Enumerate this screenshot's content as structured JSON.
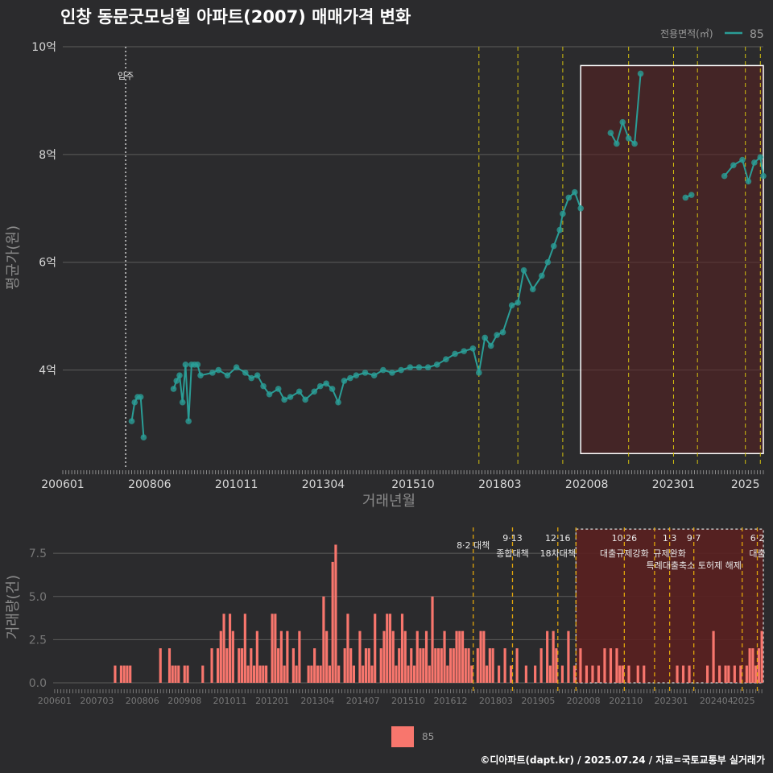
{
  "title": "인창 동문굿모닝힐 아파트(2007) 매매가격 변화",
  "legend": {
    "title": "전용면적(㎡)",
    "series": "85",
    "bottom_series": "85"
  },
  "colors": {
    "line": "#2a9d96",
    "point": "#2a9d96",
    "bar": "#f8766d",
    "policy": "#d4c10f",
    "highlight_fill": "#5a2020",
    "vline_white": "#d0d0d0"
  },
  "credit": "©디아파트(dapt.kr) / 2025.07.24 / 자료=국토교통부 실거래가",
  "chart_data": [
    {
      "type": "line",
      "name": "price",
      "xlabel": "거래년월",
      "ylabel": "평균가(원)",
      "x_range": [
        "2006-01",
        "2025-07"
      ],
      "ylim": [
        2.2,
        10.0
      ],
      "y_unit": "억",
      "yticks": [
        {
          "v": 4,
          "label": "4억"
        },
        {
          "v": 6,
          "label": "6억"
        },
        {
          "v": 8,
          "label": "8억"
        },
        {
          "v": 10,
          "label": "10억"
        }
      ],
      "xticks": [
        "200601",
        "200806",
        "201011",
        "201304",
        "201510",
        "201803",
        "202008",
        "202301",
        "2025"
      ],
      "event_line": {
        "x": "2007-10",
        "label": "입주"
      },
      "policy_lines": [
        "2017-08",
        "2018-09",
        "2019-12",
        "2021-10",
        "2023-01",
        "2023-09",
        "2025-01",
        "2025-06"
      ],
      "highlight": {
        "from": "2020-06",
        "to": "2025-07",
        "ymin": 2.45,
        "ymax": 9.65
      },
      "series": [
        {
          "name": "85",
          "x": [
            "2007-12",
            "2008-01",
            "2008-02",
            "2008-03",
            "2008-04",
            "2009-02",
            "2009-03",
            "2009-04",
            "2009-05",
            "2009-06",
            "2009-07",
            "2009-08",
            "2009-09",
            "2009-10",
            "2009-11",
            "2010-03",
            "2010-05",
            "2010-08",
            "2010-11",
            "2011-02",
            "2011-04",
            "2011-06",
            "2011-08",
            "2011-10",
            "2012-01",
            "2012-03",
            "2012-05",
            "2012-08",
            "2012-10",
            "2013-01",
            "2013-03",
            "2013-05",
            "2013-07",
            "2013-09",
            "2013-11",
            "2014-01",
            "2014-03",
            "2014-06",
            "2014-09",
            "2014-12",
            "2015-03",
            "2015-06",
            "2015-09",
            "2015-12",
            "2016-03",
            "2016-06",
            "2016-09",
            "2016-12",
            "2017-03",
            "2017-06",
            "2017-08",
            "2017-10",
            "2017-12",
            "2018-02",
            "2018-04",
            "2018-07",
            "2018-09",
            "2018-11",
            "2019-02",
            "2019-05",
            "2019-07",
            "2019-09",
            "2019-11",
            "2019-12",
            "2020-02",
            "2020-04",
            "2020-06",
            "2021-04",
            "2021-06",
            "2021-08",
            "2021-10",
            "2021-12",
            "2022-02",
            "2023-05",
            "2023-07",
            "2024-06",
            "2024-09",
            "2024-12",
            "2025-02",
            "2025-04",
            "2025-06",
            "2025-07"
          ],
          "values": [
            3.05,
            3.4,
            3.5,
            3.5,
            2.75,
            3.65,
            3.8,
            3.9,
            3.4,
            4.1,
            3.05,
            4.1,
            4.1,
            4.1,
            3.9,
            3.95,
            4.0,
            3.9,
            4.05,
            3.95,
            3.85,
            3.9,
            3.7,
            3.55,
            3.65,
            3.45,
            3.5,
            3.6,
            3.45,
            3.6,
            3.7,
            3.75,
            3.65,
            3.4,
            3.8,
            3.85,
            3.9,
            3.95,
            3.9,
            4.0,
            3.95,
            4.0,
            4.05,
            4.05,
            4.05,
            4.1,
            4.2,
            4.3,
            4.35,
            4.4,
            3.95,
            4.6,
            4.45,
            4.65,
            4.7,
            5.2,
            5.25,
            5.85,
            5.5,
            5.75,
            6.0,
            6.3,
            6.6,
            6.9,
            7.2,
            7.3,
            7.0,
            8.4,
            8.2,
            8.6,
            8.3,
            8.2,
            9.5,
            7.2,
            7.25,
            7.6,
            7.8,
            7.9,
            7.5,
            7.85,
            7.95,
            7.6
          ]
        }
      ]
    },
    {
      "type": "bar",
      "name": "volume",
      "ylabel": "거래량(건)",
      "x_range": [
        "2006-01",
        "2025-07"
      ],
      "ylim": [
        0,
        9
      ],
      "yticks": [
        {
          "v": 0,
          "label": "0.0"
        },
        {
          "v": 2.5,
          "label": "2.5"
        },
        {
          "v": 5,
          "label": "5.0"
        },
        {
          "v": 7.5,
          "label": "7.5"
        }
      ],
      "xticks": [
        "200601",
        "200703",
        "200806",
        "200908",
        "201011",
        "201201",
        "201304",
        "201407",
        "201510",
        "201612",
        "201803",
        "201905",
        "202008",
        "202110",
        "202301",
        "202404",
        "2025"
      ],
      "policy_lines": [
        "2017-08",
        "2018-09",
        "2019-12",
        "2020-06",
        "2021-10",
        "2022-08",
        "2023-01",
        "2023-09",
        "2025-01",
        "2025-06"
      ],
      "annotations": [
        {
          "x": "2017-08",
          "line1": "8·2 대책",
          "line2": ""
        },
        {
          "x": "2018-09",
          "line1": "9·13",
          "line2": "종합대책"
        },
        {
          "x": "2019-12",
          "line1": "12·16",
          "line2": "18차대책"
        },
        {
          "x": "2021-10",
          "line1": "10·26",
          "line2": "대출규제강화"
        },
        {
          "x": "2023-01",
          "line1": "1·3",
          "line2": "규제완화"
        },
        {
          "x": "2023-09",
          "line1": "9·7",
          "line2": "특례대출축소 토허제 해제"
        },
        {
          "x": "2025-06",
          "line1": "6·2",
          "line2": "대출"
        }
      ],
      "highlight": {
        "from": "2020-06",
        "to": "2025-07",
        "ymin": 0,
        "ymax": 8.9
      },
      "series": [
        {
          "name": "85",
          "x": [
            "2007-09",
            "2007-11",
            "2007-12",
            "2008-01",
            "2008-02",
            "2008-12",
            "2009-03",
            "2009-04",
            "2009-05",
            "2009-06",
            "2009-08",
            "2009-09",
            "2010-02",
            "2010-05",
            "2010-07",
            "2010-08",
            "2010-09",
            "2010-10",
            "2010-11",
            "2010-12",
            "2011-02",
            "2011-03",
            "2011-04",
            "2011-05",
            "2011-06",
            "2011-07",
            "2011-08",
            "2011-09",
            "2011-10",
            "2011-11",
            "2012-01",
            "2012-02",
            "2012-03",
            "2012-04",
            "2012-05",
            "2012-06",
            "2012-08",
            "2012-09",
            "2012-10",
            "2013-01",
            "2013-02",
            "2013-03",
            "2013-04",
            "2013-05",
            "2013-06",
            "2013-07",
            "2013-08",
            "2013-09",
            "2013-10",
            "2013-11",
            "2014-01",
            "2014-02",
            "2014-03",
            "2014-04",
            "2014-06",
            "2014-07",
            "2014-08",
            "2014-09",
            "2014-10",
            "2014-11",
            "2015-01",
            "2015-02",
            "2015-03",
            "2015-04",
            "2015-05",
            "2015-06",
            "2015-07",
            "2015-08",
            "2015-09",
            "2015-10",
            "2015-11",
            "2015-12",
            "2016-01",
            "2016-02",
            "2016-03",
            "2016-04",
            "2016-05",
            "2016-06",
            "2016-07",
            "2016-08",
            "2016-09",
            "2016-10",
            "2016-11",
            "2016-12",
            "2017-01",
            "2017-02",
            "2017-03",
            "2017-04",
            "2017-05",
            "2017-06",
            "2017-07",
            "2017-09",
            "2017-10",
            "2017-11",
            "2017-12",
            "2018-01",
            "2018-02",
            "2018-04",
            "2018-06",
            "2018-08",
            "2018-10",
            "2019-01",
            "2019-04",
            "2019-06",
            "2019-08",
            "2019-09",
            "2019-10",
            "2019-11",
            "2020-01",
            "2020-03",
            "2020-05",
            "2020-07",
            "2020-09",
            "2020-11",
            "2021-01",
            "2021-03",
            "2021-05",
            "2021-07",
            "2021-08",
            "2021-09",
            "2021-11",
            "2022-02",
            "2022-04",
            "2023-03",
            "2023-05",
            "2023-07",
            "2024-01",
            "2024-03",
            "2024-05",
            "2024-07",
            "2024-08",
            "2024-10",
            "2024-12",
            "2025-02",
            "2025-03",
            "2025-04",
            "2025-05",
            "2025-06",
            "2025-07"
          ],
          "values": [
            1,
            1,
            1,
            1,
            1,
            2,
            2,
            1,
            1,
            1,
            1,
            1,
            1,
            2,
            2,
            3,
            4,
            2,
            4,
            3,
            2,
            2,
            4,
            1,
            2,
            1,
            3,
            1,
            1,
            1,
            4,
            4,
            2,
            3,
            1,
            3,
            2,
            1,
            3,
            1,
            1,
            2,
            1,
            1,
            5,
            3,
            1,
            7,
            8,
            1,
            2,
            4,
            2,
            1,
            3,
            1,
            2,
            2,
            1,
            4,
            2,
            3,
            4,
            4,
            3,
            1,
            2,
            4,
            3,
            1,
            2,
            1,
            3,
            2,
            2,
            3,
            1,
            5,
            2,
            2,
            2,
            3,
            1,
            2,
            2,
            3,
            3,
            3,
            2,
            2,
            1,
            2,
            3,
            3,
            1,
            2,
            2,
            1,
            2,
            1,
            2,
            1,
            1,
            2,
            3,
            1,
            3,
            2,
            1,
            3,
            1,
            2,
            1,
            1,
            1,
            2,
            2,
            2,
            1,
            1,
            1,
            1,
            1,
            1,
            1,
            1,
            1,
            3,
            1,
            1,
            1,
            1,
            1,
            1,
            2,
            2,
            1,
            2,
            3
          ]
        }
      ]
    }
  ]
}
